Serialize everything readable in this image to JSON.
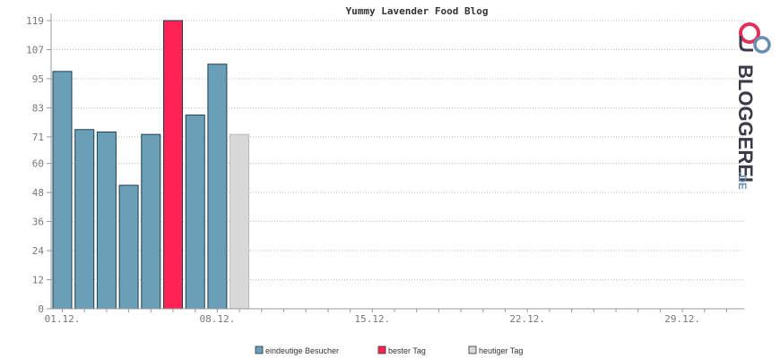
{
  "chart_data": {
    "type": "bar",
    "title": "Yummy Lavender Food Blog",
    "xlabel": "",
    "ylabel": "",
    "ylim": [
      0,
      119
    ],
    "yticks": [
      0,
      12,
      24,
      36,
      48,
      60,
      71,
      83,
      95,
      107,
      119
    ],
    "x_labels": [
      "01.12.",
      "08.12.",
      "15.12.",
      "22.12.",
      "29.12."
    ],
    "x_label_days": [
      1,
      8,
      15,
      22,
      29
    ],
    "days_in_month": 31,
    "grid": true,
    "bars": [
      {
        "day": 1,
        "value": 98,
        "kind": "visitors"
      },
      {
        "day": 2,
        "value": 74,
        "kind": "visitors"
      },
      {
        "day": 3,
        "value": 73,
        "kind": "visitors"
      },
      {
        "day": 4,
        "value": 51,
        "kind": "visitors"
      },
      {
        "day": 5,
        "value": 72,
        "kind": "visitors"
      },
      {
        "day": 6,
        "value": 119,
        "kind": "best"
      },
      {
        "day": 7,
        "value": 80,
        "kind": "visitors"
      },
      {
        "day": 8,
        "value": 101,
        "kind": "visitors"
      },
      {
        "day": 9,
        "value": 72,
        "kind": "today"
      }
    ],
    "legend": [
      {
        "key": "visitors",
        "label": "eindeutige Besucher",
        "color": "#6a9fb8"
      },
      {
        "key": "best",
        "label": "bester Tag",
        "color": "#ff2255"
      },
      {
        "key": "today",
        "label": "heutiger Tag",
        "color": "#d8d8d8"
      }
    ],
    "legend_position": "bottom-center"
  },
  "logo": {
    "text": "BLOGGEREI",
    "suffix": ".DE",
    "icon": "bloggerei-logo-icon",
    "colors": {
      "red": "#e0335a",
      "dark": "#3a3a4a",
      "blue": "#6a8cb0"
    }
  }
}
